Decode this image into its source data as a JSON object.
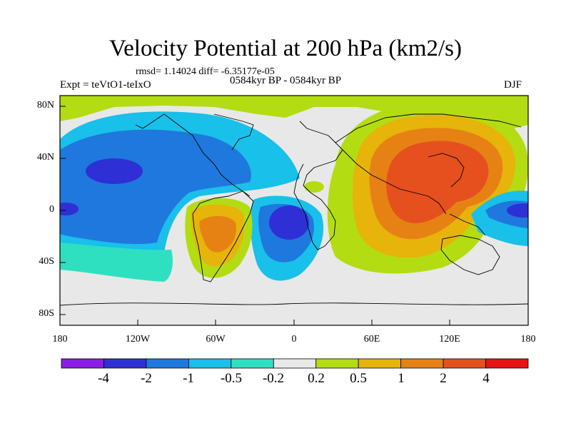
{
  "title": "Velocity Potential at 200 hPa (km2/s)",
  "stats": "rmsd= 1.14024  diff= -6.35177e-05",
  "experiment": "Expt = teVtO1-teIxO",
  "period": "0584kyr BP - 0584kyr BP",
  "season": "DJF",
  "lat_labels": [
    "80N",
    "40N",
    "0",
    "40S",
    "80S"
  ],
  "lon_labels": [
    "180",
    "120W",
    "60W",
    "0",
    "60E",
    "120E",
    "180"
  ],
  "colorbar": {
    "labels": [
      "-4",
      "-2",
      "-1",
      "-0.5",
      "-0.2",
      "0.2",
      "0.5",
      "1",
      "2",
      "4"
    ],
    "colors": [
      "#8a1ee6",
      "#2f2fd6",
      "#1f78dd",
      "#19c0e9",
      "#2fe0c0",
      "#e8e8e8",
      "#b4dc12",
      "#e6b40a",
      "#e68214",
      "#e6501e",
      "#e61414"
    ]
  }
}
